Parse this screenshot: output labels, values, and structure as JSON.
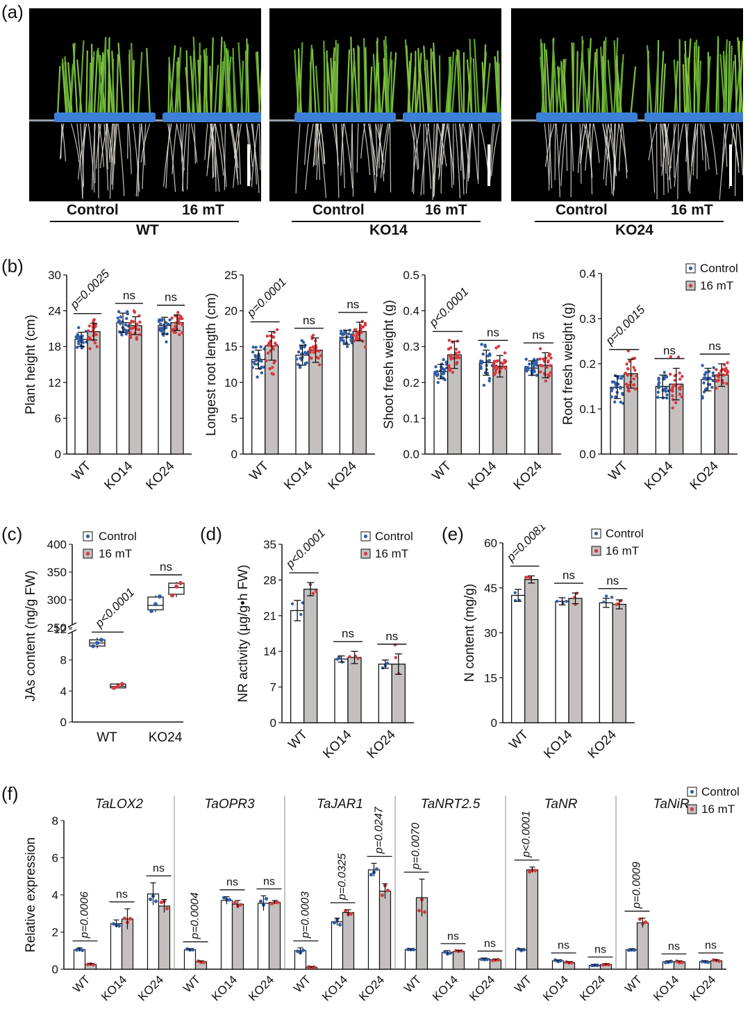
{
  "panels": {
    "a": "(a)",
    "b": "(b)",
    "c": "(c)",
    "d": "(d)",
    "e": "(e)",
    "f": "(f)"
  },
  "photos": [
    {
      "left_label": "Control",
      "right_label": "16 mT",
      "genotype": "WT"
    },
    {
      "left_label": "Control",
      "right_label": "16 mT",
      "genotype": "KO14"
    },
    {
      "left_label": "Control",
      "right_label": "16 mT",
      "genotype": "KO24"
    }
  ],
  "legend": {
    "control": "Control",
    "treatment": "16 mT"
  },
  "colors": {
    "control_bar": "#ffffff",
    "treatment_bar": "#c4c0c0",
    "control_dot": "#2f5ea8",
    "treatment_dot": "#d6393d",
    "text": "#111111"
  },
  "chart_data": [
    {
      "id": "b1",
      "type": "bar",
      "ylabel": "Plant height (cm)",
      "ylim": [
        0,
        30
      ],
      "yticks": [
        "0",
        "6",
        "12",
        "18",
        "24",
        "30"
      ],
      "categories": [
        "WT",
        "KO14",
        "KO24"
      ],
      "series": [
        {
          "name": "Control",
          "values": [
            19.2,
            22.0,
            21.5
          ],
          "err": [
            1.2,
            1.6,
            1.4
          ]
        },
        {
          "name": "16 mT",
          "values": [
            20.5,
            21.5,
            22.0
          ],
          "err": [
            1.4,
            1.5,
            1.3
          ]
        }
      ],
      "stats": [
        "p=0.0025",
        "ns",
        "ns"
      ],
      "legend": false
    },
    {
      "id": "b2",
      "type": "bar",
      "ylabel": "Longest root length (cm)",
      "ylim": [
        0,
        25
      ],
      "yticks": [
        "0",
        "5",
        "10",
        "15",
        "20",
        "25"
      ],
      "categories": [
        "WT",
        "KO14",
        "KO24"
      ],
      "series": [
        {
          "name": "Control",
          "values": [
            13.2,
            13.8,
            16.3
          ],
          "err": [
            1.3,
            1.4,
            1.0
          ]
        },
        {
          "name": "16 mT",
          "values": [
            15.1,
            14.5,
            17.1
          ],
          "err": [
            2.0,
            1.7,
            1.3
          ]
        }
      ],
      "stats": [
        "p=0.0001",
        "ns",
        "ns"
      ],
      "legend": false
    },
    {
      "id": "b3",
      "type": "bar",
      "ylabel": "Shoot fresh weight (g)",
      "ylim": [
        0,
        0.5
      ],
      "yticks": [
        "0.0",
        "0.1",
        "0.2",
        "0.3",
        "0.4",
        "0.5"
      ],
      "categories": [
        "WT",
        "KO14",
        "KO24"
      ],
      "series": [
        {
          "name": "Control",
          "values": [
            0.23,
            0.255,
            0.24
          ],
          "err": [
            0.02,
            0.035,
            0.02
          ]
        },
        {
          "name": "16 mT",
          "values": [
            0.277,
            0.245,
            0.248
          ],
          "err": [
            0.038,
            0.03,
            0.035
          ]
        }
      ],
      "stats": [
        "p<0.0001",
        "ns",
        "ns"
      ],
      "legend": false
    },
    {
      "id": "b4",
      "type": "bar",
      "ylabel": "Root fresh weight (g)",
      "ylim": [
        0,
        0.4
      ],
      "yticks": [
        "0.0",
        "0.1",
        "0.2",
        "0.3",
        "0.4"
      ],
      "categories": [
        "WT",
        "KO14",
        "KO24"
      ],
      "series": [
        {
          "name": "Control",
          "values": [
            0.148,
            0.15,
            0.165
          ],
          "err": [
            0.025,
            0.025,
            0.025
          ]
        },
        {
          "name": "16 mT",
          "values": [
            0.178,
            0.155,
            0.175
          ],
          "err": [
            0.032,
            0.035,
            0.025
          ]
        }
      ],
      "stats": [
        "p=0.0015",
        "ns",
        "ns"
      ],
      "legend": true
    },
    {
      "id": "c",
      "type": "box",
      "ylabel": "JAs content (ng/g FW)",
      "lower_ticks": [
        "0",
        "4",
        "8",
        "12"
      ],
      "upper_ticks": [
        "250",
        "300",
        "350",
        "400"
      ],
      "categories": [
        "WT",
        "KO24"
      ],
      "series": [
        {
          "name": "Control",
          "groups": [
            {
              "min": 9.5,
              "q1": 9.8,
              "med": 10.2,
              "q3": 10.6,
              "max": 10.9,
              "pts": [
                9.8,
                10.2,
                10.6
              ]
            },
            {
              "min": 278,
              "q1": 282,
              "med": 290,
              "q3": 305,
              "max": 308,
              "pts": [
                280,
                292,
                306
              ]
            }
          ]
        },
        {
          "name": "16 mT",
          "groups": [
            {
              "min": 4.3,
              "q1": 4.4,
              "med": 4.6,
              "q3": 4.9,
              "max": 5.0,
              "pts": [
                4.4,
                4.6,
                4.9
              ]
            },
            {
              "min": 305,
              "q1": 310,
              "med": 322,
              "q3": 330,
              "max": 332,
              "pts": [
                308,
                324,
                330
              ]
            }
          ]
        }
      ],
      "stats": [
        "p<0.0001",
        "ns"
      ],
      "legend": true
    },
    {
      "id": "d",
      "type": "bar",
      "ylabel": "NR activity (µg/g•h FW)",
      "ylim": [
        0,
        35
      ],
      "yticks": [
        "0",
        "7",
        "14",
        "21",
        "28",
        "35"
      ],
      "categories": [
        "WT",
        "KO14",
        "KO24"
      ],
      "series": [
        {
          "name": "Control",
          "values": [
            22.0,
            12.5,
            11.5
          ],
          "err": [
            2.0,
            0.6,
            0.8
          ]
        },
        {
          "name": "16 mT",
          "values": [
            26.2,
            12.8,
            11.5
          ],
          "err": [
            1.3,
            1.2,
            2.0
          ]
        }
      ],
      "stats": [
        "p<0.0001",
        "ns",
        "ns"
      ],
      "legend": true
    },
    {
      "id": "e",
      "type": "bar",
      "ylabel": "N content (mg/g)",
      "ylim": [
        0,
        60
      ],
      "yticks": [
        "0",
        "15",
        "30",
        "45",
        "60"
      ],
      "categories": [
        "WT",
        "KO14",
        "KO24"
      ],
      "series": [
        {
          "name": "Control",
          "values": [
            42.5,
            40.5,
            40.0
          ],
          "err": [
            2.0,
            1.2,
            1.5
          ]
        },
        {
          "name": "16 mT",
          "values": [
            47.8,
            41.5,
            39.5
          ],
          "err": [
            1.2,
            1.8,
            1.5
          ]
        }
      ],
      "stats": [
        "p=0.0081",
        "ns",
        "ns"
      ],
      "legend": true
    },
    {
      "id": "f",
      "type": "bar",
      "ylabel": "Relative expression",
      "ylim": [
        0,
        8
      ],
      "yticks": [
        "0",
        "2",
        "4",
        "6",
        "8"
      ],
      "categories": [
        "WT",
        "KO14",
        "KO24"
      ],
      "legend": true,
      "genes": [
        {
          "name": "TaLOX2",
          "control": [
            1.05,
            2.45,
            4.05
          ],
          "ctrl_err": [
            0.1,
            0.2,
            0.6
          ],
          "treat": [
            0.25,
            2.7,
            3.4
          ],
          "treat_err": [
            0.05,
            0.55,
            0.35
          ],
          "stats": [
            "p=0.0006",
            "ns",
            "ns"
          ]
        },
        {
          "name": "TaOPR3",
          "control": [
            1.05,
            3.7,
            3.55
          ],
          "ctrl_err": [
            0.05,
            0.2,
            0.4
          ],
          "treat": [
            0.4,
            3.5,
            3.6
          ],
          "treat_err": [
            0.05,
            0.2,
            0.1
          ],
          "stats": [
            "p=0.0004",
            "ns",
            "ns"
          ]
        },
        {
          "name": "TaJAR1",
          "control": [
            1.0,
            2.55,
            5.35
          ],
          "ctrl_err": [
            0.15,
            0.2,
            0.35
          ],
          "treat": [
            0.1,
            3.05,
            4.2
          ],
          "treat_err": [
            0.03,
            0.15,
            0.4
          ],
          "stats": [
            "p=0.0003",
            "p=0.0325",
            "p=0.0247"
          ]
        },
        {
          "name": "TaNRT2.5",
          "control": [
            1.05,
            0.9,
            0.55
          ],
          "ctrl_err": [
            0.05,
            0.1,
            0.05
          ],
          "treat": [
            3.85,
            0.95,
            0.5
          ],
          "treat_err": [
            1.0,
            0.05,
            0.05
          ],
          "stats": [
            "p=0.0070",
            "ns",
            "ns"
          ]
        },
        {
          "name": "TaNR",
          "control": [
            1.05,
            0.45,
            0.2
          ],
          "ctrl_err": [
            0.05,
            0.05,
            0.03
          ],
          "treat": [
            5.35,
            0.35,
            0.25
          ],
          "treat_err": [
            0.15,
            0.05,
            0.03
          ],
          "stats": [
            "p<0.0001",
            "ns",
            "ns"
          ]
        },
        {
          "name": "TaNiR",
          "control": [
            1.05,
            0.4,
            0.4
          ],
          "ctrl_err": [
            0.05,
            0.05,
            0.05
          ],
          "treat": [
            2.5,
            0.4,
            0.45
          ],
          "treat_err": [
            0.25,
            0.05,
            0.05
          ],
          "stats": [
            "p=0.0009",
            "ns",
            "ns"
          ]
        }
      ]
    }
  ]
}
